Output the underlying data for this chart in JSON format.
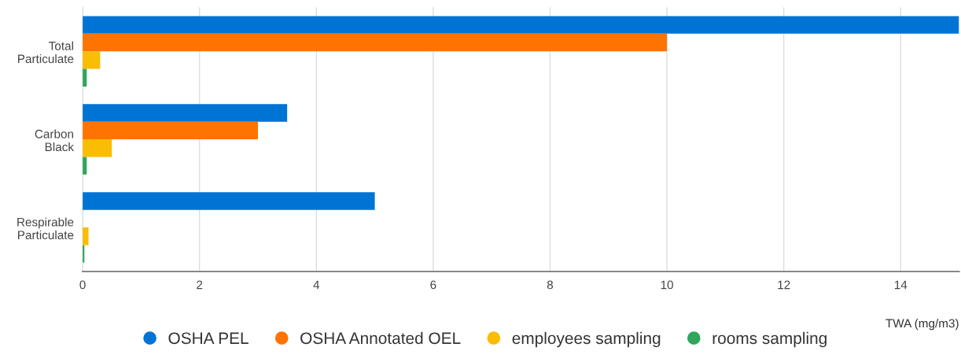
{
  "chart_data": {
    "type": "bar",
    "orientation": "horizontal",
    "categories": [
      "Total\nParticulate",
      "Carbon\nBlack",
      "Respirable\nParticulate"
    ],
    "series": [
      {
        "name": "OSHA PEL",
        "color": "#0074d4",
        "values": [
          15,
          3.5,
          5
        ]
      },
      {
        "name": "OSHA Annotated OEL",
        "color": "#ff7300",
        "values": [
          10,
          3,
          null
        ]
      },
      {
        "name": "employees sampling",
        "color": "#f9bd04",
        "values": [
          0.3,
          0.5,
          0.1
        ]
      },
      {
        "name": "rooms sampling",
        "color": "#2fa65a",
        "values": [
          0.07,
          0.07,
          0.03
        ]
      }
    ],
    "xlim": [
      0,
      15
    ],
    "xticks": [
      0,
      2,
      4,
      6,
      8,
      10,
      12,
      14
    ],
    "xlabel": "TWA (mg/m3)",
    "grid": "x",
    "legend": "bottom"
  }
}
